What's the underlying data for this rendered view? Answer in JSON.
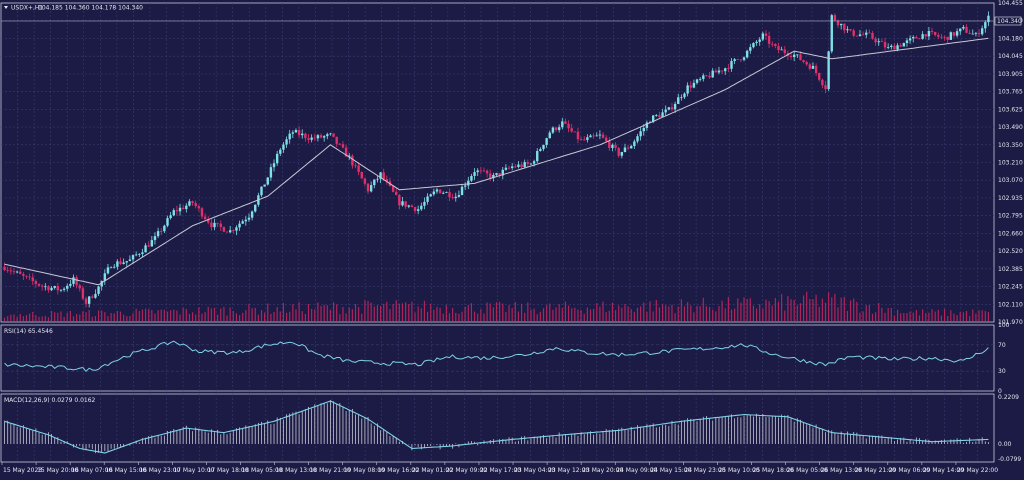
{
  "window": {
    "symbol_label": "USDX+,H1",
    "ohlc": "104.185 104.360 104.178 104.340",
    "current_price": "104.340"
  },
  "colors": {
    "background": "#1b1b45",
    "grid": "#3b3b72",
    "bull": "#7fe0e6",
    "bear": "#e0306a",
    "ma": "#c8c8d4",
    "volume": "#b0245a",
    "rsi": "#7fd2e6",
    "macd_line": "#7fd2e6",
    "macd_hist": "#c8c8d4",
    "text": "#e6e6f0"
  },
  "main_axis": {
    "ticks": [
      "104.455",
      "104.320",
      "104.180",
      "104.045",
      "103.905",
      "103.765",
      "103.625",
      "103.490",
      "103.350",
      "103.210",
      "103.070",
      "102.935",
      "102.795",
      "102.660",
      "102.520",
      "102.385",
      "102.245",
      "102.110",
      "101.970"
    ]
  },
  "rsi_panel": {
    "label": "RSI(14) 65.4546",
    "ticks": [
      "100",
      "70",
      "30",
      "0"
    ]
  },
  "macd_panel": {
    "label": "MACD(12,26,9) 0.0279 0.0162",
    "ticks": [
      "0.2209",
      "0.00",
      "-0.0799"
    ]
  },
  "time_axis": {
    "labels": [
      "15 May 2023",
      "15 May 20:00",
      "16 May 07:00",
      "16 May 15:00",
      "16 May 23:00",
      "17 May 10:00",
      "17 May 18:00",
      "18 May 05:00",
      "18 May 13:00",
      "18 May 21:00",
      "19 May 08:00",
      "19 May 16:00",
      "22 May 01:00",
      "22 May 09:00",
      "22 May 17:00",
      "23 May 04:00",
      "23 May 12:00",
      "23 May 20:00",
      "24 May 09:00",
      "24 May 15:00",
      "24 May 23:00",
      "25 May 10:00",
      "25 May 18:00",
      "26 May 05:00",
      "26 May 13:00",
      "26 May 21:00",
      "29 May 06:00",
      "29 May 14:00",
      "29 May 22:00"
    ]
  },
  "chart_data": {
    "type": "candlestick",
    "symbol": "USDX+",
    "timeframe": "H1",
    "price_range": [
      101.97,
      104.455
    ],
    "price_waypoints": [
      [
        0,
        102.4
      ],
      [
        6,
        102.32
      ],
      [
        12,
        102.25
      ],
      [
        18,
        102.22
      ],
      [
        22,
        102.3
      ],
      [
        26,
        102.12
      ],
      [
        30,
        102.24
      ],
      [
        34,
        102.42
      ],
      [
        40,
        102.45
      ],
      [
        48,
        102.62
      ],
      [
        54,
        102.83
      ],
      [
        60,
        102.9
      ],
      [
        66,
        102.73
      ],
      [
        72,
        102.68
      ],
      [
        78,
        102.8
      ],
      [
        84,
        103.1
      ],
      [
        88,
        103.32
      ],
      [
        92,
        103.45
      ],
      [
        98,
        103.4
      ],
      [
        104,
        103.42
      ],
      [
        110,
        103.25
      ],
      [
        116,
        103.0
      ],
      [
        120,
        103.12
      ],
      [
        126,
        102.9
      ],
      [
        132,
        102.85
      ],
      [
        138,
        103.0
      ],
      [
        144,
        102.95
      ],
      [
        150,
        103.15
      ],
      [
        156,
        103.1
      ],
      [
        162,
        103.18
      ],
      [
        168,
        103.2
      ],
      [
        174,
        103.45
      ],
      [
        178,
        103.52
      ],
      [
        184,
        103.38
      ],
      [
        190,
        103.42
      ],
      [
        196,
        103.28
      ],
      [
        200,
        103.35
      ],
      [
        206,
        103.55
      ],
      [
        212,
        103.62
      ],
      [
        218,
        103.8
      ],
      [
        224,
        103.88
      ],
      [
        230,
        103.95
      ],
      [
        236,
        104.05
      ],
      [
        242,
        104.2
      ],
      [
        246,
        104.1
      ],
      [
        252,
        104.05
      ],
      [
        258,
        103.95
      ],
      [
        262,
        103.8
      ],
      [
        264,
        104.35
      ],
      [
        270,
        104.22
      ],
      [
        276,
        104.2
      ],
      [
        282,
        104.1
      ],
      [
        288,
        104.15
      ],
      [
        294,
        104.22
      ],
      [
        300,
        104.18
      ],
      [
        306,
        104.25
      ],
      [
        310,
        104.2
      ],
      [
        314,
        104.34
      ]
    ],
    "ma_waypoints": [
      [
        0,
        102.42
      ],
      [
        30,
        102.26
      ],
      [
        60,
        102.72
      ],
      [
        84,
        102.95
      ],
      [
        104,
        103.35
      ],
      [
        126,
        103.0
      ],
      [
        150,
        103.05
      ],
      [
        190,
        103.35
      ],
      [
        230,
        103.78
      ],
      [
        252,
        104.08
      ],
      [
        264,
        104.02
      ],
      [
        314,
        104.18
      ]
    ],
    "volume_waypoints": [
      [
        0,
        0.3
      ],
      [
        40,
        0.4
      ],
      [
        90,
        0.6
      ],
      [
        120,
        0.7
      ],
      [
        170,
        0.6
      ],
      [
        200,
        0.7
      ],
      [
        240,
        0.8
      ],
      [
        262,
        1.0
      ],
      [
        290,
        0.4
      ],
      [
        314,
        0.4
      ]
    ],
    "rsi": {
      "range": [
        0,
        100
      ],
      "levels": [
        70,
        30
      ],
      "waypoints": [
        [
          0,
          40
        ],
        [
          20,
          35
        ],
        [
          28,
          32
        ],
        [
          40,
          55
        ],
        [
          54,
          75
        ],
        [
          62,
          60
        ],
        [
          74,
          58
        ],
        [
          84,
          70
        ],
        [
          92,
          75
        ],
        [
          100,
          55
        ],
        [
          110,
          45
        ],
        [
          122,
          42
        ],
        [
          132,
          40
        ],
        [
          142,
          52
        ],
        [
          154,
          50
        ],
        [
          166,
          55
        ],
        [
          176,
          65
        ],
        [
          186,
          58
        ],
        [
          196,
          55
        ],
        [
          206,
          58
        ],
        [
          216,
          62
        ],
        [
          226,
          65
        ],
        [
          236,
          70
        ],
        [
          246,
          55
        ],
        [
          256,
          45
        ],
        [
          262,
          40
        ],
        [
          270,
          52
        ],
        [
          284,
          48
        ],
        [
          296,
          50
        ],
        [
          306,
          45
        ],
        [
          314,
          65
        ]
      ]
    },
    "macd": {
      "range": [
        -0.0799,
        0.2209
      ],
      "waypoints": [
        [
          0,
          0.1
        ],
        [
          14,
          0.04
        ],
        [
          24,
          -0.02
        ],
        [
          32,
          -0.04
        ],
        [
          44,
          0.02
        ],
        [
          58,
          0.07
        ],
        [
          70,
          0.05
        ],
        [
          86,
          0.1
        ],
        [
          104,
          0.19
        ],
        [
          116,
          0.11
        ],
        [
          130,
          -0.02
        ],
        [
          142,
          -0.01
        ],
        [
          162,
          0.02
        ],
        [
          178,
          0.04
        ],
        [
          196,
          0.06
        ],
        [
          216,
          0.1
        ],
        [
          236,
          0.13
        ],
        [
          250,
          0.12
        ],
        [
          264,
          0.05
        ],
        [
          280,
          0.03
        ],
        [
          296,
          0.01
        ],
        [
          314,
          0.02
        ]
      ]
    }
  }
}
